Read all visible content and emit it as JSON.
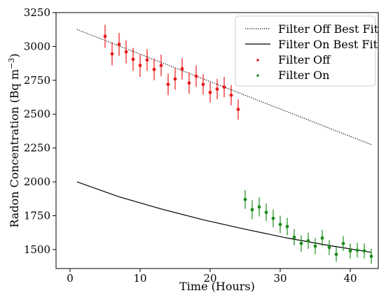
{
  "chart_data": {
    "type": "scatter",
    "title": "",
    "xlabel": "Time (Hours)",
    "ylabel_text": "Radon Concentration (Bq m",
    "ylabel_exponent": "−3",
    "ylabel_close": ")",
    "xlim": [
      -2,
      44
    ],
    "ylim": [
      1360,
      3250
    ],
    "x_ticks": [
      0,
      10,
      20,
      30,
      40
    ],
    "y_ticks": [
      1500,
      1750,
      2000,
      2250,
      2500,
      2750,
      3000,
      3250
    ],
    "legend_position": "top-right",
    "grid": false,
    "series": [
      {
        "name": "Filter Off Best Fit",
        "kind": "line",
        "style": "dotted",
        "color": "#000000",
        "x": [
          1,
          43
        ],
        "y": [
          3125,
          2275
        ]
      },
      {
        "name": "Filter On Best Fit",
        "kind": "curve",
        "style": "solid",
        "color": "#000000",
        "x": [
          1,
          7,
          13,
          19,
          25,
          31,
          37,
          43
        ],
        "y": [
          2000,
          1890,
          1800,
          1720,
          1650,
          1585,
          1530,
          1480
        ]
      },
      {
        "name": "Filter Off",
        "kind": "scatter",
        "color": "#e8191a",
        "x": [
          5,
          6,
          7,
          8,
          9,
          10,
          11,
          12,
          13,
          14,
          15,
          16,
          17,
          18,
          19,
          20,
          21,
          22,
          23,
          24
        ],
        "y": [
          3075,
          2945,
          3015,
          2960,
          2905,
          2860,
          2900,
          2830,
          2860,
          2720,
          2760,
          2835,
          2730,
          2780,
          2720,
          2660,
          2685,
          2700,
          2640,
          2535
        ],
        "err": [
          85,
          85,
          85,
          85,
          85,
          85,
          80,
          80,
          80,
          80,
          80,
          80,
          80,
          80,
          75,
          75,
          75,
          75,
          75,
          75
        ]
      },
      {
        "name": "Filter On",
        "kind": "scatter",
        "color": "#1a8c1a",
        "x": [
          25,
          26,
          27,
          28,
          29,
          30,
          31,
          32,
          33,
          34,
          35,
          36,
          37,
          38,
          39,
          40,
          41,
          42,
          43
        ],
        "y": [
          1870,
          1795,
          1815,
          1775,
          1730,
          1685,
          1670,
          1590,
          1545,
          1565,
          1525,
          1585,
          1515,
          1465,
          1545,
          1490,
          1495,
          1490,
          1450
        ],
        "err": [
          70,
          70,
          70,
          65,
          65,
          65,
          65,
          60,
          60,
          60,
          60,
          60,
          55,
          55,
          55,
          55,
          55,
          55,
          55
        ]
      }
    ]
  }
}
